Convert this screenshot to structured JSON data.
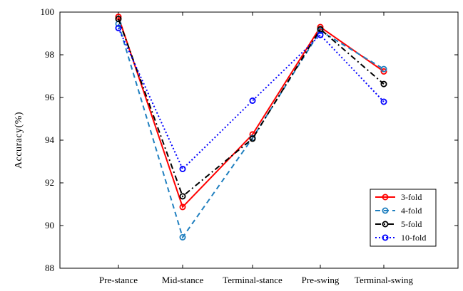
{
  "chart_data": {
    "type": "line",
    "title": "",
    "xlabel": "",
    "ylabel": "Accuracy(%)",
    "categories": [
      "Pre-stance",
      "Mid-stance",
      "Terminal-stance",
      "Pre-swing",
      "Terminal-swing"
    ],
    "ylim": [
      88,
      100
    ],
    "yticks": [
      "88",
      "90",
      "92",
      "94",
      "96",
      "98",
      "100"
    ],
    "grid": false,
    "legend_position": "bottom-right",
    "series": [
      {
        "name": "3-fold",
        "color": "#ff0000",
        "style": "solid",
        "values": [
          99.78,
          90.87,
          94.27,
          99.3,
          97.22
        ]
      },
      {
        "name": "4-fold",
        "color": "#1f7fbf",
        "style": "dashed",
        "values": [
          99.45,
          89.45,
          94.1,
          99.12,
          97.33
        ]
      },
      {
        "name": "5-fold",
        "color": "#000000",
        "style": "dashdot",
        "values": [
          99.68,
          91.37,
          94.07,
          99.2,
          96.63
        ]
      },
      {
        "name": "10-fold",
        "color": "#0000ff",
        "style": "dotted",
        "values": [
          99.25,
          92.65,
          95.85,
          98.93,
          95.8
        ]
      }
    ]
  }
}
